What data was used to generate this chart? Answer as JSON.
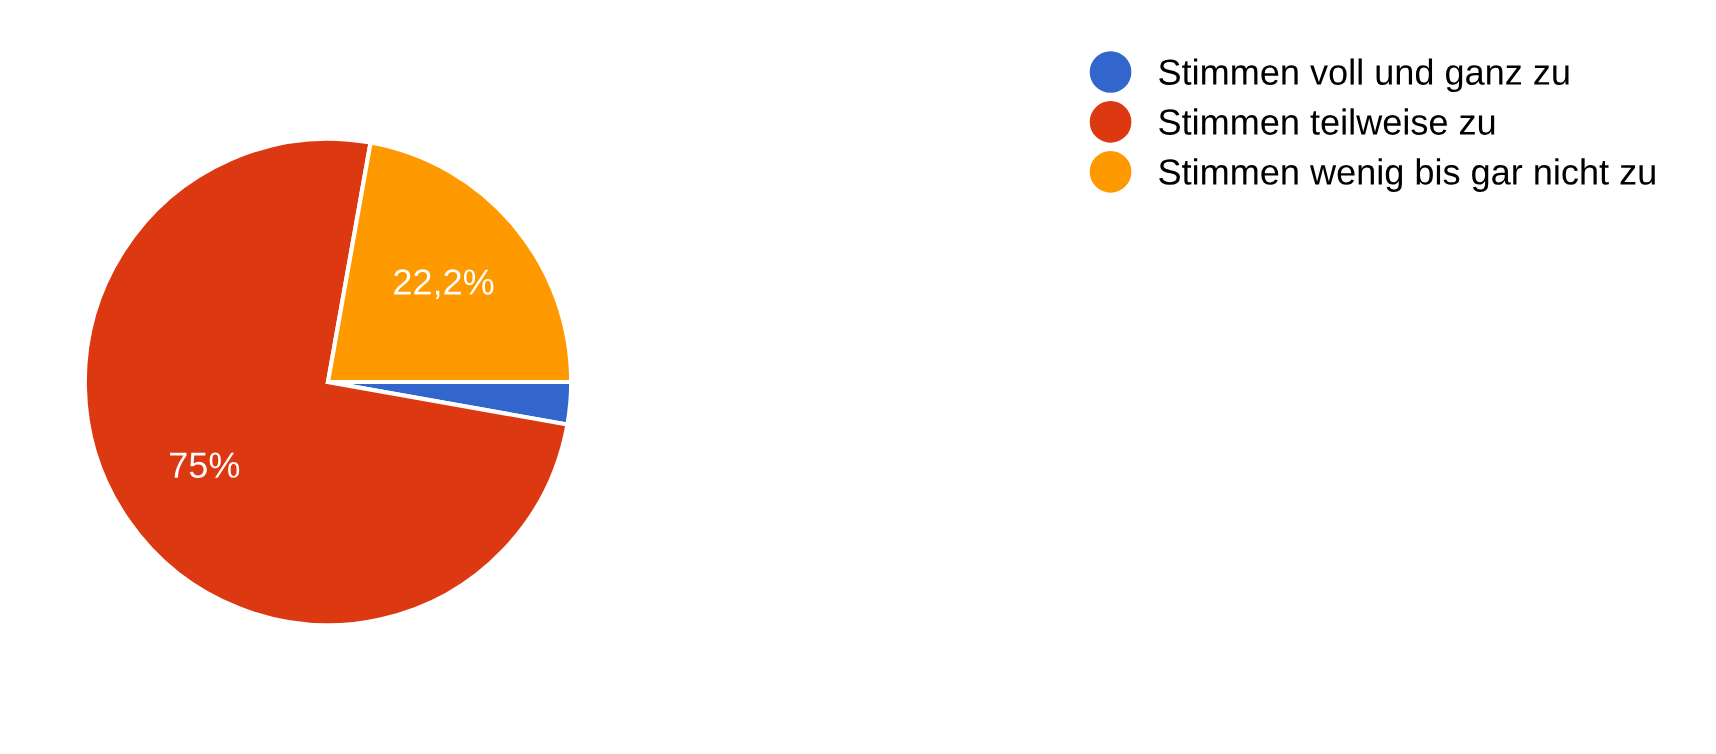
{
  "chart_data": {
    "type": "pie",
    "categories": [
      "Stimmen voll und ganz zu",
      "Stimmen teilweise zu",
      "Stimmen wenig bis gar nicht zu"
    ],
    "values": [
      2.8,
      75,
      22.2
    ],
    "colors": [
      "#3366cc",
      "#dc3912",
      "#ff9900"
    ],
    "value_labels": [
      null,
      "75%",
      "22,2%"
    ],
    "legend": "right"
  }
}
